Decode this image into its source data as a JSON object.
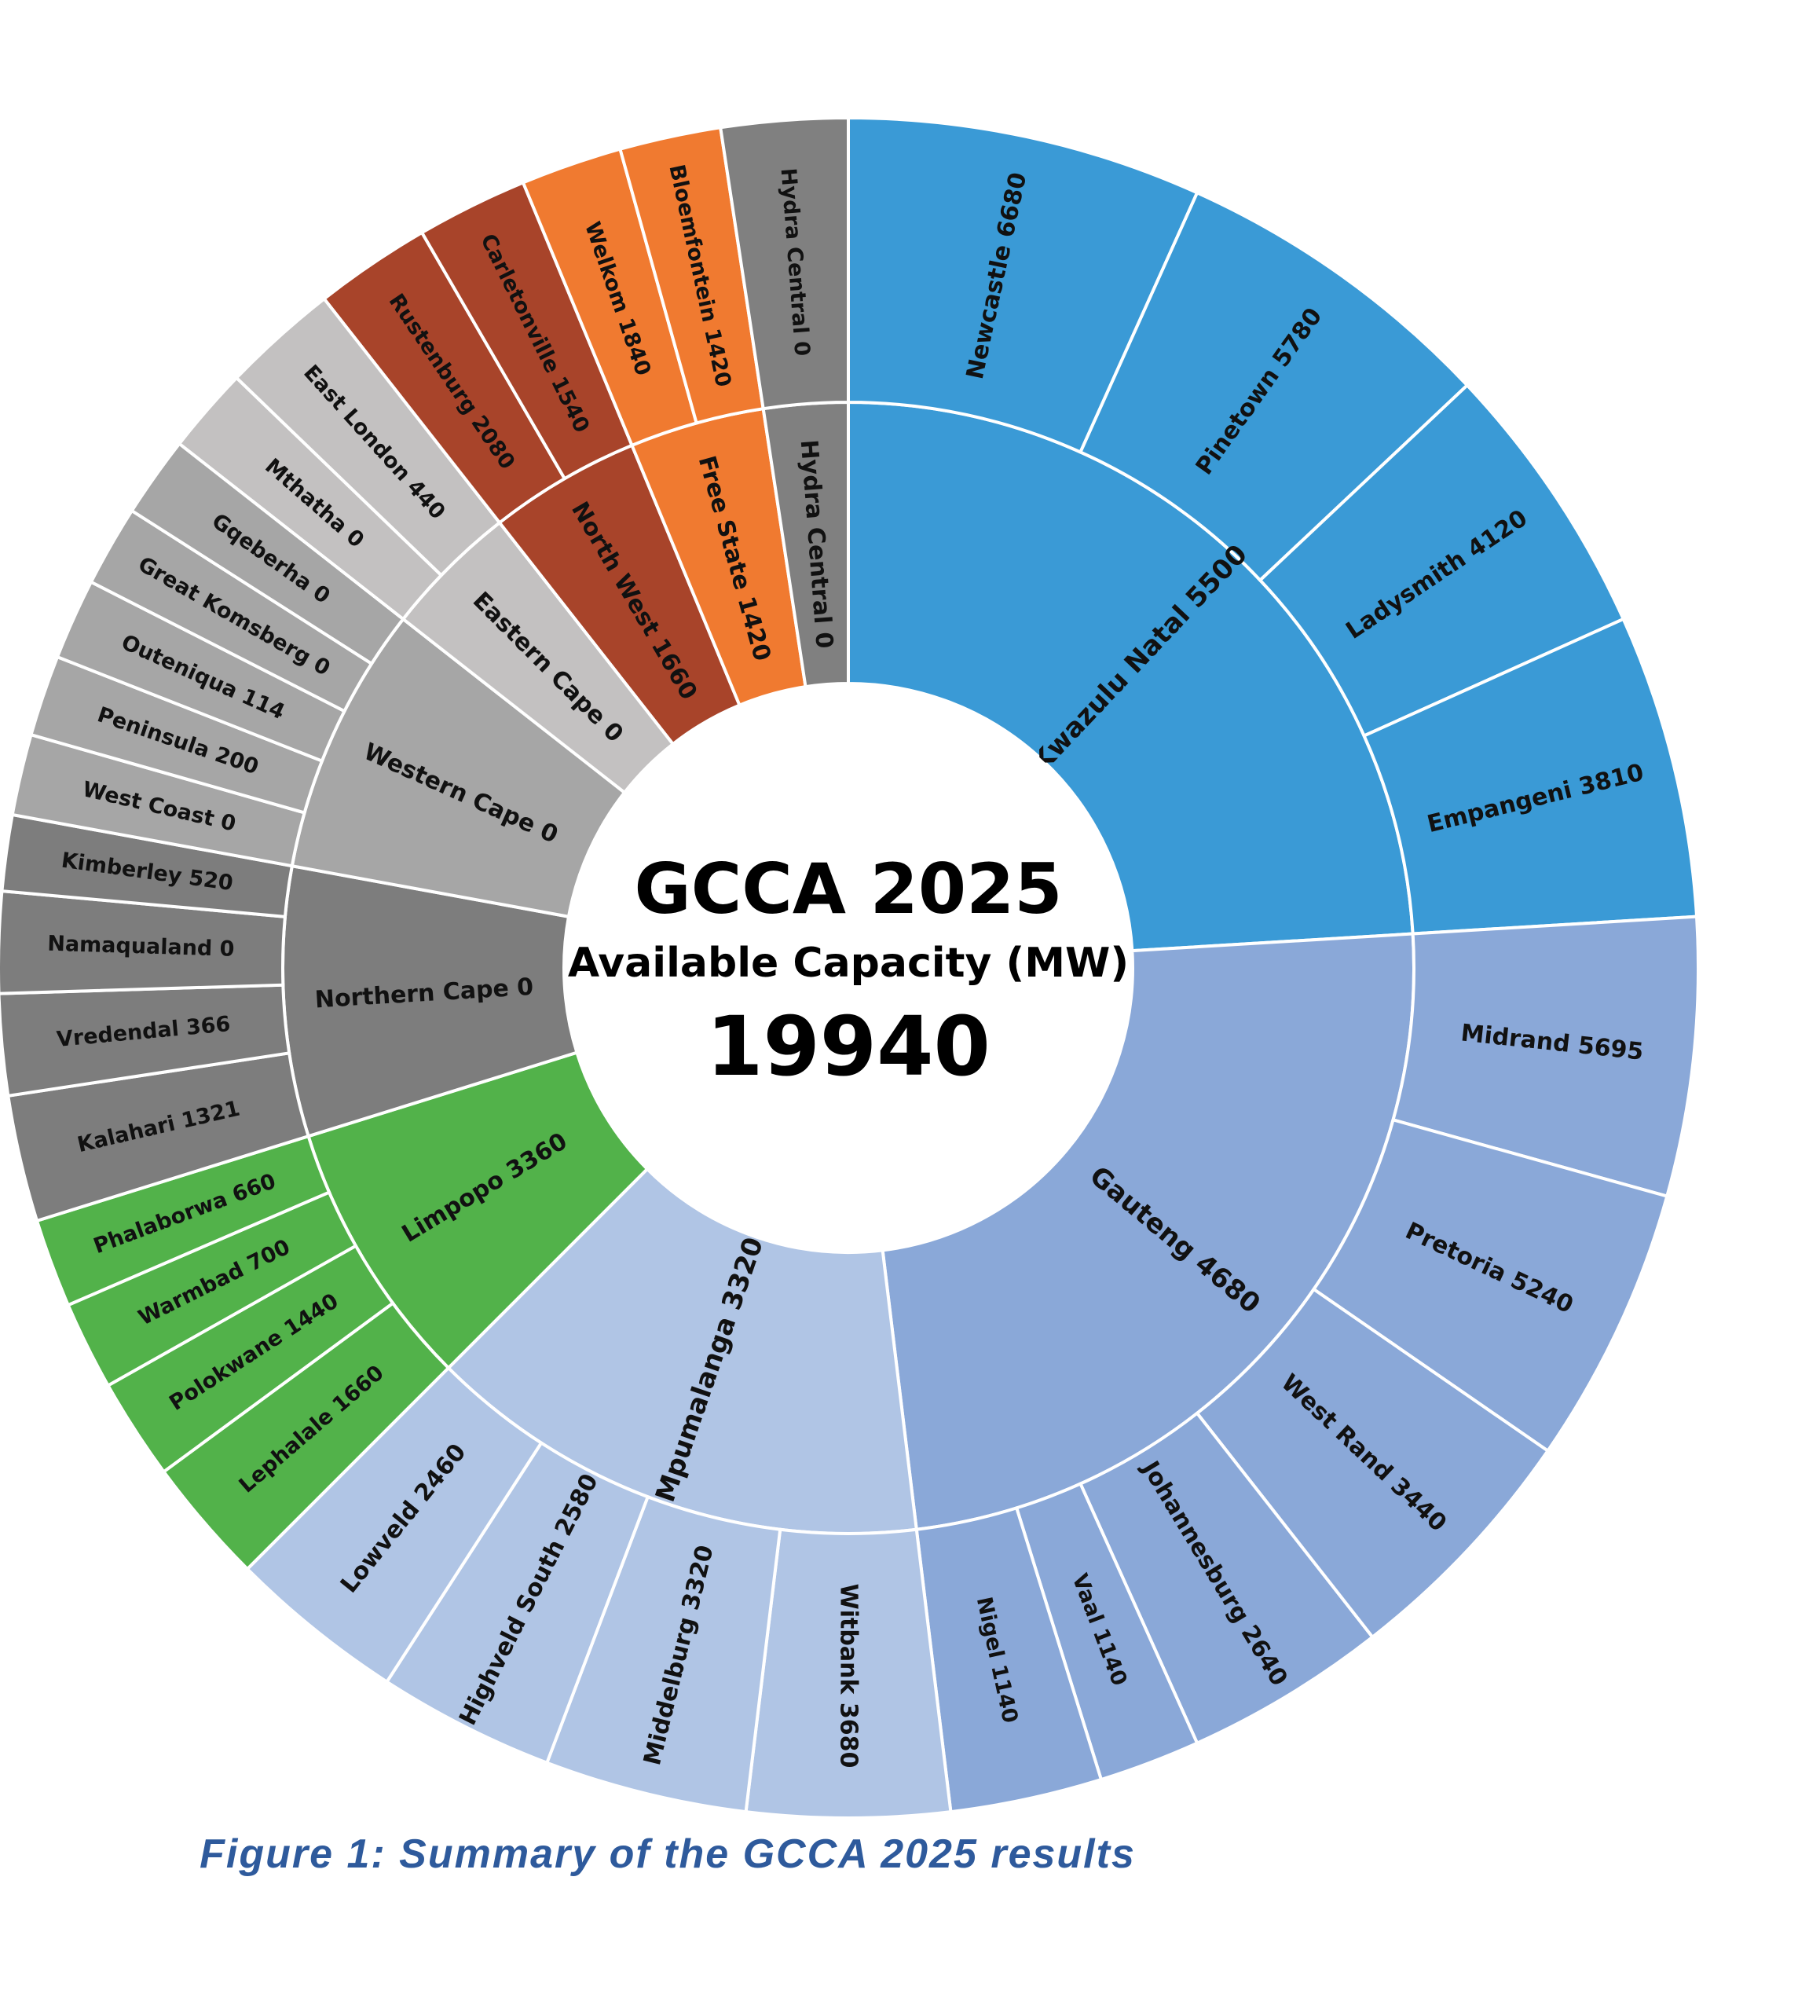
{
  "chart_data": {
    "type": "sunburst",
    "center": {
      "title": "GCCA 2025",
      "subtitle": "Available Capacity (MW)",
      "total": "19940"
    },
    "regions": [
      {
        "label": "Kwazulu Natal 5500",
        "value": 5500,
        "color": "#3a9ad6",
        "span": 25,
        "areas": [
          {
            "label": "Newcastle 6680",
            "value": 6680,
            "span": 7
          },
          {
            "label": "Pinetown 5780",
            "value": 5780,
            "span": 6.5
          },
          {
            "label": "Ladysmith 4120",
            "value": 4120,
            "span": 5.5
          },
          {
            "label": "Empangeni 3810",
            "value": 3810,
            "span": 6
          }
        ]
      },
      {
        "label": "Gauteng 4680",
        "value": 4680,
        "color": "#8aa8d8",
        "span": 25,
        "areas": [
          {
            "label": "Midrand 5695",
            "value": 5695,
            "span": 5.5
          },
          {
            "label": "Pretoria 5240",
            "value": 5240,
            "span": 5.5
          },
          {
            "label": "West Rand 3440",
            "value": 3440,
            "span": 5
          },
          {
            "label": "Johannesburg 2640",
            "value": 2640,
            "span": 4
          },
          {
            "label": "Vaal 1140",
            "value": 1140,
            "span": 2
          },
          {
            "label": "Nigel 1140",
            "value": 1140,
            "span": 3
          }
        ]
      },
      {
        "label": "Mpumalanga 3320",
        "value": 3320,
        "color": "#b0c5e5",
        "span": 15,
        "areas": [
          {
            "label": "Witbank 3680",
            "value": 3680,
            "span": 4
          },
          {
            "label": "Middelburg 3320",
            "value": 3320,
            "span": 4
          },
          {
            "label": "Highveld South 2580",
            "value": 2580,
            "span": 3.5
          },
          {
            "label": "Lowveld 2460",
            "value": 2460,
            "span": 3.5
          }
        ]
      },
      {
        "label": "Limpopo 3360",
        "value": 3360,
        "color": "#52b24a",
        "span": 8,
        "areas": [
          {
            "label": "Lephalale 1660",
            "value": 1660,
            "span": 2.5
          },
          {
            "label": "Polokwane 1440",
            "value": 1440,
            "span": 2
          },
          {
            "label": "Warmbad 700",
            "value": 700,
            "span": 1.75
          },
          {
            "label": "Phalaborwa 660",
            "value": 660,
            "span": 1.75
          }
        ]
      },
      {
        "label": "Northern Cape 0",
        "value": 0,
        "color": "#7d7d7d",
        "span": 8,
        "areas": [
          {
            "label": "Kalahari 1321",
            "value": 1321,
            "span": 2.5
          },
          {
            "label": "Vredendal 366",
            "value": 366,
            "span": 2
          },
          {
            "label": "Namaqualand 0",
            "value": 0,
            "span": 2
          },
          {
            "label": "Kimberley 520",
            "value": 520,
            "span": 1.5
          }
        ]
      },
      {
        "label": "Western Cape 0",
        "value": 0,
        "color": "#a6a6a6",
        "span": 8,
        "areas": [
          {
            "label": "West Coast 0",
            "value": 0,
            "span": 1.6
          },
          {
            "label": "Peninsula 200",
            "value": 200,
            "span": 1.6
          },
          {
            "label": "Outeniqua 114",
            "value": 114,
            "span": 1.6
          },
          {
            "label": "Great Komsberg 0",
            "value": 0,
            "span": 1.6
          },
          {
            "label": "Gqeberha 0",
            "value": 0,
            "span": 1.6
          }
        ]
      },
      {
        "label": "Eastern Cape 0",
        "value": 0,
        "color": "#c3c1c1",
        "span": 4,
        "areas": [
          {
            "label": "Mthatha 0",
            "value": 0,
            "span": 1.7
          },
          {
            "label": "East London 440",
            "value": 440,
            "span": 2.3
          }
        ]
      },
      {
        "label": "North West 1660",
        "value": 1660,
        "color": "#a8442a",
        "span": 4.5,
        "areas": [
          {
            "label": "Rustenburg 2080",
            "value": 2080,
            "span": 2.3
          },
          {
            "label": "Carletonville 1540",
            "value": 1540,
            "span": 2.2
          }
        ]
      },
      {
        "label": "Free State 1420",
        "value": 1420,
        "color": "#f07a30",
        "span": 4,
        "areas": [
          {
            "label": "Welkom 1840",
            "value": 1840,
            "span": 2
          },
          {
            "label": "Bloemfontein 1420",
            "value": 1420,
            "span": 2
          }
        ]
      },
      {
        "label": "Hydra Central 0",
        "value": 0,
        "color": "#808080",
        "span": 2.5,
        "areas": [
          {
            "label": "Hydra Central 0",
            "value": 0,
            "span": 2.5
          }
        ]
      }
    ]
  },
  "caption": "Figure 1: Summary of the  GCCA 2025 results"
}
